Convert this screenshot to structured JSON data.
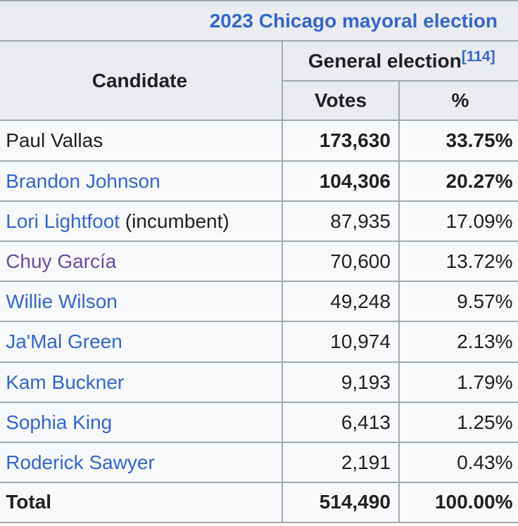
{
  "table": {
    "caption": "2023 Chicago mayoral election",
    "headers": {
      "candidate": "Candidate",
      "group": "General election",
      "group_ref": "[114]",
      "votes": "Votes",
      "percent": "%"
    },
    "rows": [
      {
        "name": "Paul Vallas",
        "suffix": "",
        "votes": "173,630",
        "percent": "33.75%"
      },
      {
        "name": "Brandon Johnson",
        "suffix": "",
        "votes": "104,306",
        "percent": "20.27%"
      },
      {
        "name": "Lori Lightfoot",
        "suffix": " (incumbent)",
        "votes": "87,935",
        "percent": "17.09%"
      },
      {
        "name": "Chuy García",
        "suffix": "",
        "votes": "70,600",
        "percent": "13.72%"
      },
      {
        "name": "Willie Wilson",
        "suffix": "",
        "votes": "49,248",
        "percent": "9.57%"
      },
      {
        "name": "Ja'Mal Green",
        "suffix": "",
        "votes": "10,974",
        "percent": "2.13%"
      },
      {
        "name": "Kam Buckner",
        "suffix": "",
        "votes": "9,193",
        "percent": "1.79%"
      },
      {
        "name": "Sophia King",
        "suffix": "",
        "votes": "6,413",
        "percent": "1.25%"
      },
      {
        "name": "Roderick Sawyer",
        "suffix": "",
        "votes": "2,191",
        "percent": "0.43%"
      }
    ],
    "total": {
      "label": "Total",
      "votes": "514,490",
      "percent": "100.00%"
    }
  },
  "colors": {
    "link": "#3366cc",
    "visited_link": "#6b4ba1",
    "text": "#202122",
    "header_bg": "#eaecf0",
    "cell_bg": "#f8f9fa",
    "border": "#a2a9b1"
  }
}
